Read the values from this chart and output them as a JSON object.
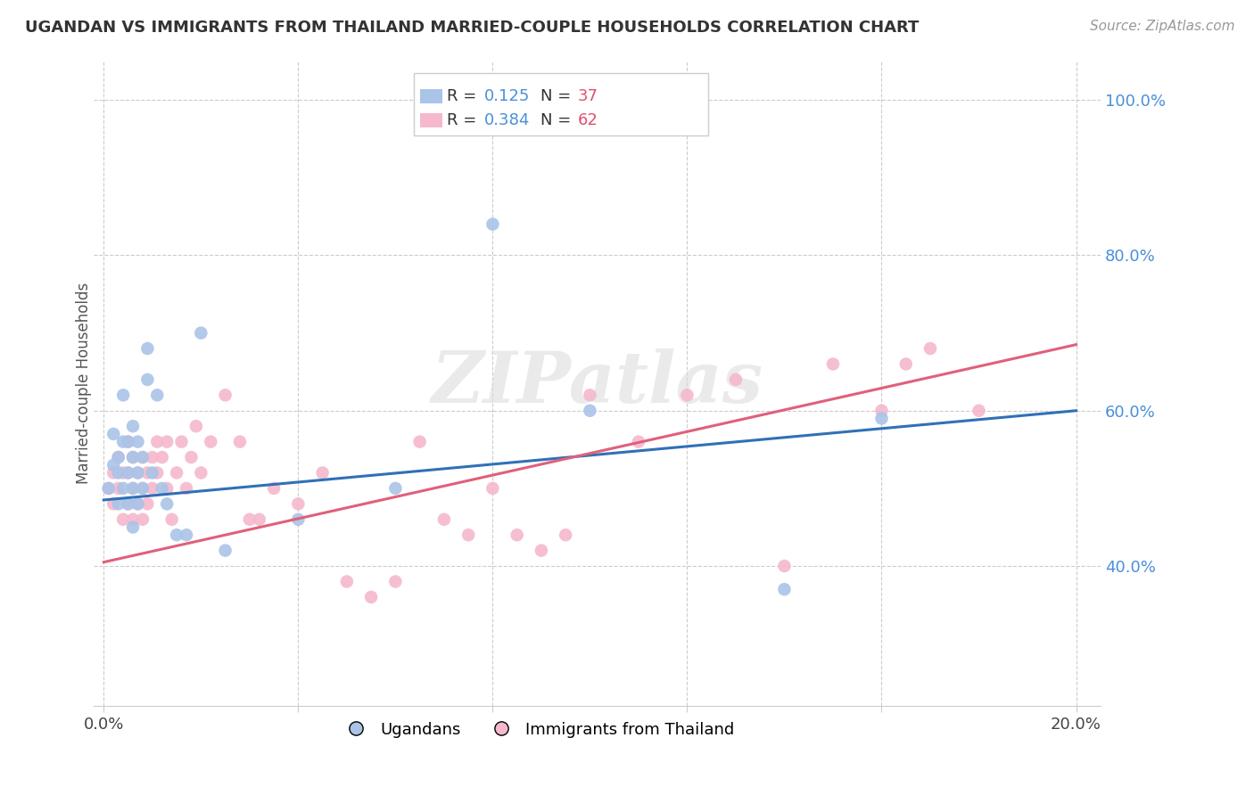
{
  "title": "UGANDAN VS IMMIGRANTS FROM THAILAND MARRIED-COUPLE HOUSEHOLDS CORRELATION CHART",
  "source": "Source: ZipAtlas.com",
  "ylabel": "Married-couple Households",
  "blue_scatter_color": "#aac4e8",
  "pink_scatter_color": "#f5b8cc",
  "blue_line_color": "#3070b8",
  "pink_line_color": "#e0607a",
  "blue_R": 0.125,
  "blue_N": 37,
  "pink_R": 0.384,
  "pink_N": 62,
  "watermark_text": "ZIPatlas",
  "blue_x": [
    0.001,
    0.002,
    0.002,
    0.003,
    0.003,
    0.003,
    0.004,
    0.004,
    0.004,
    0.005,
    0.005,
    0.005,
    0.006,
    0.006,
    0.006,
    0.006,
    0.007,
    0.007,
    0.007,
    0.008,
    0.008,
    0.009,
    0.009,
    0.01,
    0.011,
    0.012,
    0.013,
    0.015,
    0.017,
    0.02,
    0.025,
    0.04,
    0.06,
    0.08,
    0.1,
    0.14,
    0.16
  ],
  "blue_y": [
    0.5,
    0.53,
    0.57,
    0.48,
    0.52,
    0.54,
    0.5,
    0.56,
    0.62,
    0.48,
    0.52,
    0.56,
    0.45,
    0.5,
    0.54,
    0.58,
    0.48,
    0.52,
    0.56,
    0.5,
    0.54,
    0.64,
    0.68,
    0.52,
    0.62,
    0.5,
    0.48,
    0.44,
    0.44,
    0.7,
    0.42,
    0.46,
    0.5,
    0.84,
    0.6,
    0.37,
    0.59
  ],
  "pink_x": [
    0.001,
    0.002,
    0.002,
    0.003,
    0.003,
    0.004,
    0.004,
    0.005,
    0.005,
    0.005,
    0.006,
    0.006,
    0.006,
    0.007,
    0.007,
    0.008,
    0.008,
    0.008,
    0.009,
    0.009,
    0.01,
    0.01,
    0.011,
    0.011,
    0.012,
    0.013,
    0.013,
    0.014,
    0.015,
    0.016,
    0.017,
    0.018,
    0.019,
    0.02,
    0.022,
    0.025,
    0.028,
    0.03,
    0.032,
    0.035,
    0.04,
    0.045,
    0.05,
    0.055,
    0.06,
    0.065,
    0.07,
    0.075,
    0.08,
    0.085,
    0.09,
    0.095,
    0.1,
    0.11,
    0.12,
    0.13,
    0.14,
    0.15,
    0.16,
    0.165,
    0.17,
    0.18
  ],
  "pink_y": [
    0.5,
    0.48,
    0.52,
    0.5,
    0.54,
    0.46,
    0.52,
    0.48,
    0.52,
    0.56,
    0.46,
    0.5,
    0.54,
    0.48,
    0.52,
    0.46,
    0.5,
    0.54,
    0.48,
    0.52,
    0.5,
    0.54,
    0.52,
    0.56,
    0.54,
    0.5,
    0.56,
    0.46,
    0.52,
    0.56,
    0.5,
    0.54,
    0.58,
    0.52,
    0.56,
    0.62,
    0.56,
    0.46,
    0.46,
    0.5,
    0.48,
    0.52,
    0.38,
    0.36,
    0.38,
    0.56,
    0.46,
    0.44,
    0.5,
    0.44,
    0.42,
    0.44,
    0.62,
    0.56,
    0.62,
    0.64,
    0.4,
    0.66,
    0.6,
    0.66,
    0.68,
    0.6
  ],
  "xlim": [
    -0.002,
    0.205
  ],
  "ylim": [
    0.22,
    1.05
  ],
  "x_tick_positions": [
    0.0,
    0.04,
    0.08,
    0.12,
    0.16,
    0.2
  ],
  "y_tick_positions": [
    0.4,
    0.6,
    0.8,
    1.0
  ],
  "y_tick_labels": [
    "40.0%",
    "60.0%",
    "80.0%",
    "100.0%"
  ],
  "x_tick_labels": [
    "0.0%",
    "",
    "",
    "",
    "",
    "20.0%"
  ],
  "ytick_color": "#4a90d9",
  "title_fontsize": 13,
  "source_fontsize": 11,
  "tick_fontsize": 13
}
